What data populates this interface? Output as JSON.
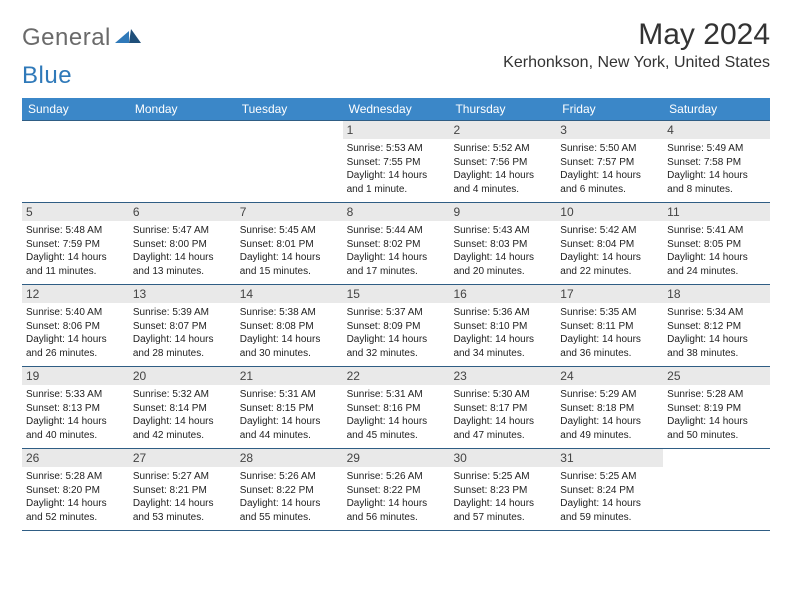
{
  "brand": {
    "part1": "General",
    "part2": "Blue"
  },
  "title": "May 2024",
  "location": "Kerhonkson, New York, United States",
  "colors": {
    "header_bg": "#3b87c8",
    "week_divider": "#2f5d84",
    "daynum_bg": "#e9e9e9",
    "brand_gray": "#6a6a6a",
    "brand_blue": "#2f79b9"
  },
  "day_headers": [
    "Sunday",
    "Monday",
    "Tuesday",
    "Wednesday",
    "Thursday",
    "Friday",
    "Saturday"
  ],
  "weeks": [
    [
      {
        "blank": true
      },
      {
        "blank": true
      },
      {
        "blank": true
      },
      {
        "num": "1",
        "sunrise": "Sunrise: 5:53 AM",
        "sunset": "Sunset: 7:55 PM",
        "daylight": "Daylight: 14 hours and 1 minute."
      },
      {
        "num": "2",
        "sunrise": "Sunrise: 5:52 AM",
        "sunset": "Sunset: 7:56 PM",
        "daylight": "Daylight: 14 hours and 4 minutes."
      },
      {
        "num": "3",
        "sunrise": "Sunrise: 5:50 AM",
        "sunset": "Sunset: 7:57 PM",
        "daylight": "Daylight: 14 hours and 6 minutes."
      },
      {
        "num": "4",
        "sunrise": "Sunrise: 5:49 AM",
        "sunset": "Sunset: 7:58 PM",
        "daylight": "Daylight: 14 hours and 8 minutes."
      }
    ],
    [
      {
        "num": "5",
        "sunrise": "Sunrise: 5:48 AM",
        "sunset": "Sunset: 7:59 PM",
        "daylight": "Daylight: 14 hours and 11 minutes."
      },
      {
        "num": "6",
        "sunrise": "Sunrise: 5:47 AM",
        "sunset": "Sunset: 8:00 PM",
        "daylight": "Daylight: 14 hours and 13 minutes."
      },
      {
        "num": "7",
        "sunrise": "Sunrise: 5:45 AM",
        "sunset": "Sunset: 8:01 PM",
        "daylight": "Daylight: 14 hours and 15 minutes."
      },
      {
        "num": "8",
        "sunrise": "Sunrise: 5:44 AM",
        "sunset": "Sunset: 8:02 PM",
        "daylight": "Daylight: 14 hours and 17 minutes."
      },
      {
        "num": "9",
        "sunrise": "Sunrise: 5:43 AM",
        "sunset": "Sunset: 8:03 PM",
        "daylight": "Daylight: 14 hours and 20 minutes."
      },
      {
        "num": "10",
        "sunrise": "Sunrise: 5:42 AM",
        "sunset": "Sunset: 8:04 PM",
        "daylight": "Daylight: 14 hours and 22 minutes."
      },
      {
        "num": "11",
        "sunrise": "Sunrise: 5:41 AM",
        "sunset": "Sunset: 8:05 PM",
        "daylight": "Daylight: 14 hours and 24 minutes."
      }
    ],
    [
      {
        "num": "12",
        "sunrise": "Sunrise: 5:40 AM",
        "sunset": "Sunset: 8:06 PM",
        "daylight": "Daylight: 14 hours and 26 minutes."
      },
      {
        "num": "13",
        "sunrise": "Sunrise: 5:39 AM",
        "sunset": "Sunset: 8:07 PM",
        "daylight": "Daylight: 14 hours and 28 minutes."
      },
      {
        "num": "14",
        "sunrise": "Sunrise: 5:38 AM",
        "sunset": "Sunset: 8:08 PM",
        "daylight": "Daylight: 14 hours and 30 minutes."
      },
      {
        "num": "15",
        "sunrise": "Sunrise: 5:37 AM",
        "sunset": "Sunset: 8:09 PM",
        "daylight": "Daylight: 14 hours and 32 minutes."
      },
      {
        "num": "16",
        "sunrise": "Sunrise: 5:36 AM",
        "sunset": "Sunset: 8:10 PM",
        "daylight": "Daylight: 14 hours and 34 minutes."
      },
      {
        "num": "17",
        "sunrise": "Sunrise: 5:35 AM",
        "sunset": "Sunset: 8:11 PM",
        "daylight": "Daylight: 14 hours and 36 minutes."
      },
      {
        "num": "18",
        "sunrise": "Sunrise: 5:34 AM",
        "sunset": "Sunset: 8:12 PM",
        "daylight": "Daylight: 14 hours and 38 minutes."
      }
    ],
    [
      {
        "num": "19",
        "sunrise": "Sunrise: 5:33 AM",
        "sunset": "Sunset: 8:13 PM",
        "daylight": "Daylight: 14 hours and 40 minutes."
      },
      {
        "num": "20",
        "sunrise": "Sunrise: 5:32 AM",
        "sunset": "Sunset: 8:14 PM",
        "daylight": "Daylight: 14 hours and 42 minutes."
      },
      {
        "num": "21",
        "sunrise": "Sunrise: 5:31 AM",
        "sunset": "Sunset: 8:15 PM",
        "daylight": "Daylight: 14 hours and 44 minutes."
      },
      {
        "num": "22",
        "sunrise": "Sunrise: 5:31 AM",
        "sunset": "Sunset: 8:16 PM",
        "daylight": "Daylight: 14 hours and 45 minutes."
      },
      {
        "num": "23",
        "sunrise": "Sunrise: 5:30 AM",
        "sunset": "Sunset: 8:17 PM",
        "daylight": "Daylight: 14 hours and 47 minutes."
      },
      {
        "num": "24",
        "sunrise": "Sunrise: 5:29 AM",
        "sunset": "Sunset: 8:18 PM",
        "daylight": "Daylight: 14 hours and 49 minutes."
      },
      {
        "num": "25",
        "sunrise": "Sunrise: 5:28 AM",
        "sunset": "Sunset: 8:19 PM",
        "daylight": "Daylight: 14 hours and 50 minutes."
      }
    ],
    [
      {
        "num": "26",
        "sunrise": "Sunrise: 5:28 AM",
        "sunset": "Sunset: 8:20 PM",
        "daylight": "Daylight: 14 hours and 52 minutes."
      },
      {
        "num": "27",
        "sunrise": "Sunrise: 5:27 AM",
        "sunset": "Sunset: 8:21 PM",
        "daylight": "Daylight: 14 hours and 53 minutes."
      },
      {
        "num": "28",
        "sunrise": "Sunrise: 5:26 AM",
        "sunset": "Sunset: 8:22 PM",
        "daylight": "Daylight: 14 hours and 55 minutes."
      },
      {
        "num": "29",
        "sunrise": "Sunrise: 5:26 AM",
        "sunset": "Sunset: 8:22 PM",
        "daylight": "Daylight: 14 hours and 56 minutes."
      },
      {
        "num": "30",
        "sunrise": "Sunrise: 5:25 AM",
        "sunset": "Sunset: 8:23 PM",
        "daylight": "Daylight: 14 hours and 57 minutes."
      },
      {
        "num": "31",
        "sunrise": "Sunrise: 5:25 AM",
        "sunset": "Sunset: 8:24 PM",
        "daylight": "Daylight: 14 hours and 59 minutes."
      },
      {
        "blank": true
      }
    ]
  ]
}
